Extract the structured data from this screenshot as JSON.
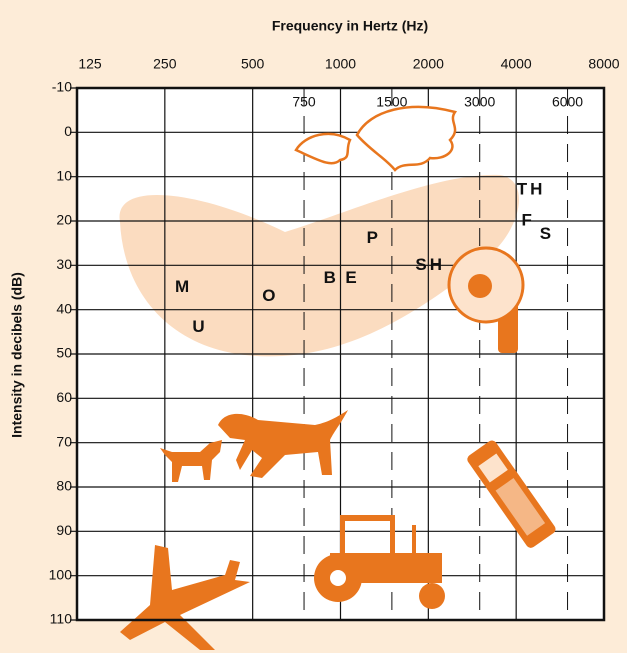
{
  "chart_data": {
    "type": "audiogram",
    "title": "Frequency in Hertz (Hz)",
    "y_label": "Intensity in decibels  (dB)",
    "log_x": true,
    "xlim": [
      125,
      8000
    ],
    "xticks": [
      125,
      250,
      500,
      1000,
      2000,
      4000,
      8000
    ],
    "minor_xticks": [
      750,
      1500,
      3000,
      6000
    ],
    "ylim": [
      110,
      -10
    ],
    "yticks": [
      -10,
      0,
      10,
      20,
      30,
      40,
      50,
      60,
      70,
      80,
      90,
      100,
      110
    ],
    "grid": true,
    "color": "#111111",
    "points": [
      {
        "label": "M",
        "x": 290,
        "y": 35
      },
      {
        "label": "U",
        "x": 330,
        "y": 44
      },
      {
        "label": "O",
        "x": 575,
        "y": 37
      },
      {
        "label": "B",
        "x": 930,
        "y": 33
      },
      {
        "label": "E",
        "x": 1100,
        "y": 33
      },
      {
        "label": "P",
        "x": 1300,
        "y": 24
      },
      {
        "label": "SH",
        "x": 2030,
        "y": 30
      },
      {
        "label": "TH",
        "x": 4500,
        "y": 13
      },
      {
        "label": "F",
        "x": 4400,
        "y": 20
      },
      {
        "label": "S",
        "x": 5100,
        "y": 23
      }
    ]
  }
}
